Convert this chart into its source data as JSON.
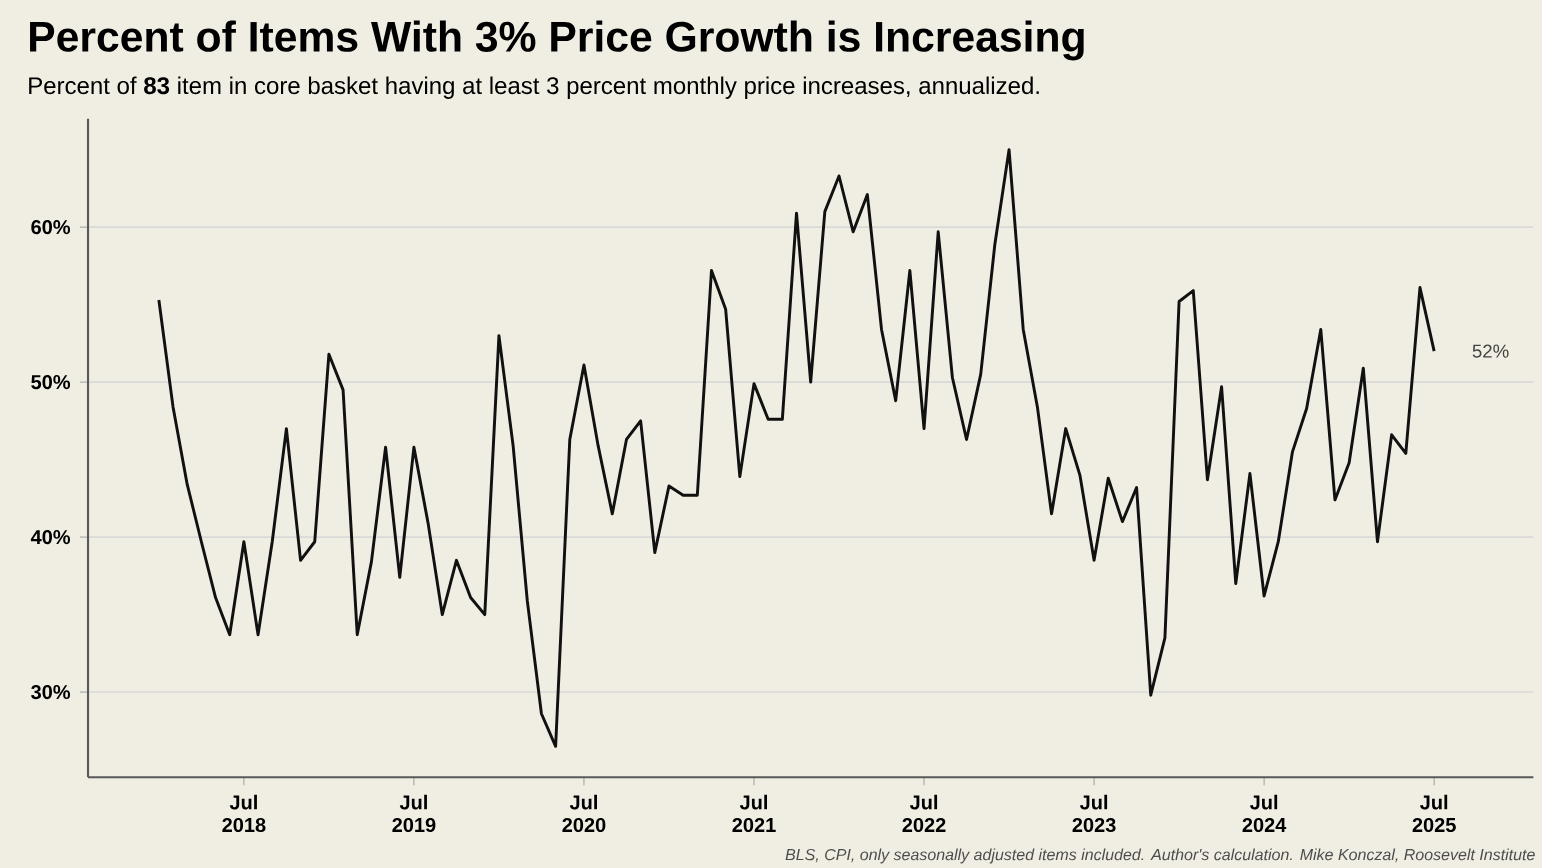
{
  "chart_data": {
    "type": "line",
    "title": "Percent of Items With 3% Price Growth is Increasing",
    "subtitle": "Percent of **83** item in core basket having at least 3 percent monthly price increases, annualized.",
    "x": [
      "2018-01",
      "2018-02",
      "2018-03",
      "2018-04",
      "2018-05",
      "2018-06",
      "2018-07",
      "2018-08",
      "2018-09",
      "2018-10",
      "2018-11",
      "2018-12",
      "2019-01",
      "2019-02",
      "2019-03",
      "2019-04",
      "2019-05",
      "2019-06",
      "2019-07",
      "2019-08",
      "2019-09",
      "2019-10",
      "2019-11",
      "2019-12",
      "2020-01",
      "2020-02",
      "2020-03",
      "2020-04",
      "2020-05",
      "2020-06",
      "2020-07",
      "2020-08",
      "2020-09",
      "2020-10",
      "2020-11",
      "2020-12",
      "2021-01",
      "2021-02",
      "2021-03",
      "2021-04",
      "2021-05",
      "2021-06",
      "2021-07",
      "2021-08",
      "2021-09",
      "2021-10",
      "2021-11",
      "2021-12",
      "2022-01",
      "2022-02",
      "2022-03",
      "2022-04",
      "2022-05",
      "2022-06",
      "2022-07",
      "2022-08",
      "2022-09",
      "2022-10",
      "2022-11",
      "2022-12",
      "2023-01",
      "2023-02",
      "2023-03",
      "2023-04",
      "2023-05",
      "2023-06",
      "2023-07",
      "2023-08",
      "2023-09",
      "2023-10",
      "2023-11",
      "2023-12",
      "2024-01",
      "2024-02",
      "2024-03",
      "2024-04",
      "2024-05",
      "2024-06",
      "2024-07",
      "2024-08",
      "2024-09",
      "2024-10",
      "2024-11",
      "2024-12",
      "2025-01",
      "2025-02",
      "2025-03",
      "2025-04",
      "2025-05",
      "2025-06",
      "2025-07"
    ],
    "series": [
      {
        "color": "#111111",
        "values": [
          55.3,
          48.4,
          43.4,
          39.7,
          36.1,
          33.7,
          39.7,
          33.7,
          39.7,
          47.0,
          38.5,
          39.7,
          51.8,
          49.5,
          33.7,
          38.4,
          45.8,
          37.4,
          45.8,
          40.9,
          35.0,
          38.5,
          36.1,
          35.0,
          53.0,
          45.9,
          35.9,
          28.6,
          26.5,
          46.3,
          51.1,
          45.9,
          41.5,
          46.3,
          47.5,
          39.0,
          43.3,
          42.7,
          42.7,
          57.2,
          54.7,
          43.9,
          49.9,
          47.6,
          47.6,
          60.9,
          50.0,
          61.0,
          63.3,
          59.7,
          62.1,
          53.4,
          48.8,
          57.2,
          47.0,
          59.7,
          50.3,
          46.3,
          50.5,
          58.9,
          65.0,
          53.4,
          48.4,
          41.5,
          47.0,
          44.0,
          38.5,
          43.8,
          41.0,
          43.2,
          29.8,
          33.5,
          55.2,
          55.9,
          43.7,
          49.7,
          37.0,
          44.1,
          36.2,
          39.7,
          45.5,
          48.3,
          53.4,
          42.4,
          44.8,
          50.9,
          39.7,
          46.6,
          45.4,
          56.1,
          52.0
        ]
      }
    ],
    "xlim": [
      "2017-08",
      "2026-02"
    ],
    "xticks": [
      {
        "value": "2018-07",
        "label": "Jul 2018"
      },
      {
        "value": "2019-07",
        "label": "Jul 2019"
      },
      {
        "value": "2020-07",
        "label": "Jul 2020"
      },
      {
        "value": "2021-07",
        "label": "Jul 2021"
      },
      {
        "value": "2022-07",
        "label": "Jul 2022"
      },
      {
        "value": "2023-07",
        "label": "Jul 2023"
      },
      {
        "value": "2024-07",
        "label": "Jul 2024"
      },
      {
        "value": "2025-07",
        "label": "Jul 2025"
      }
    ],
    "ylim": [
      24.5,
      67
    ],
    "yticks": [
      {
        "value": 30,
        "label": "30%"
      },
      {
        "value": 40,
        "label": "40%"
      },
      {
        "value": 50,
        "label": "50%"
      },
      {
        "value": 60,
        "label": "60%"
      }
    ],
    "grid": "y",
    "line_style": "solid",
    "annotations": [
      {
        "text": "52%",
        "x": "2025-07",
        "y": 52
      },
      "BLS, CPI, only seasonally adjusted items included. Author's calculation. Mike Konczal, Roosevelt Institute"
    ]
  }
}
